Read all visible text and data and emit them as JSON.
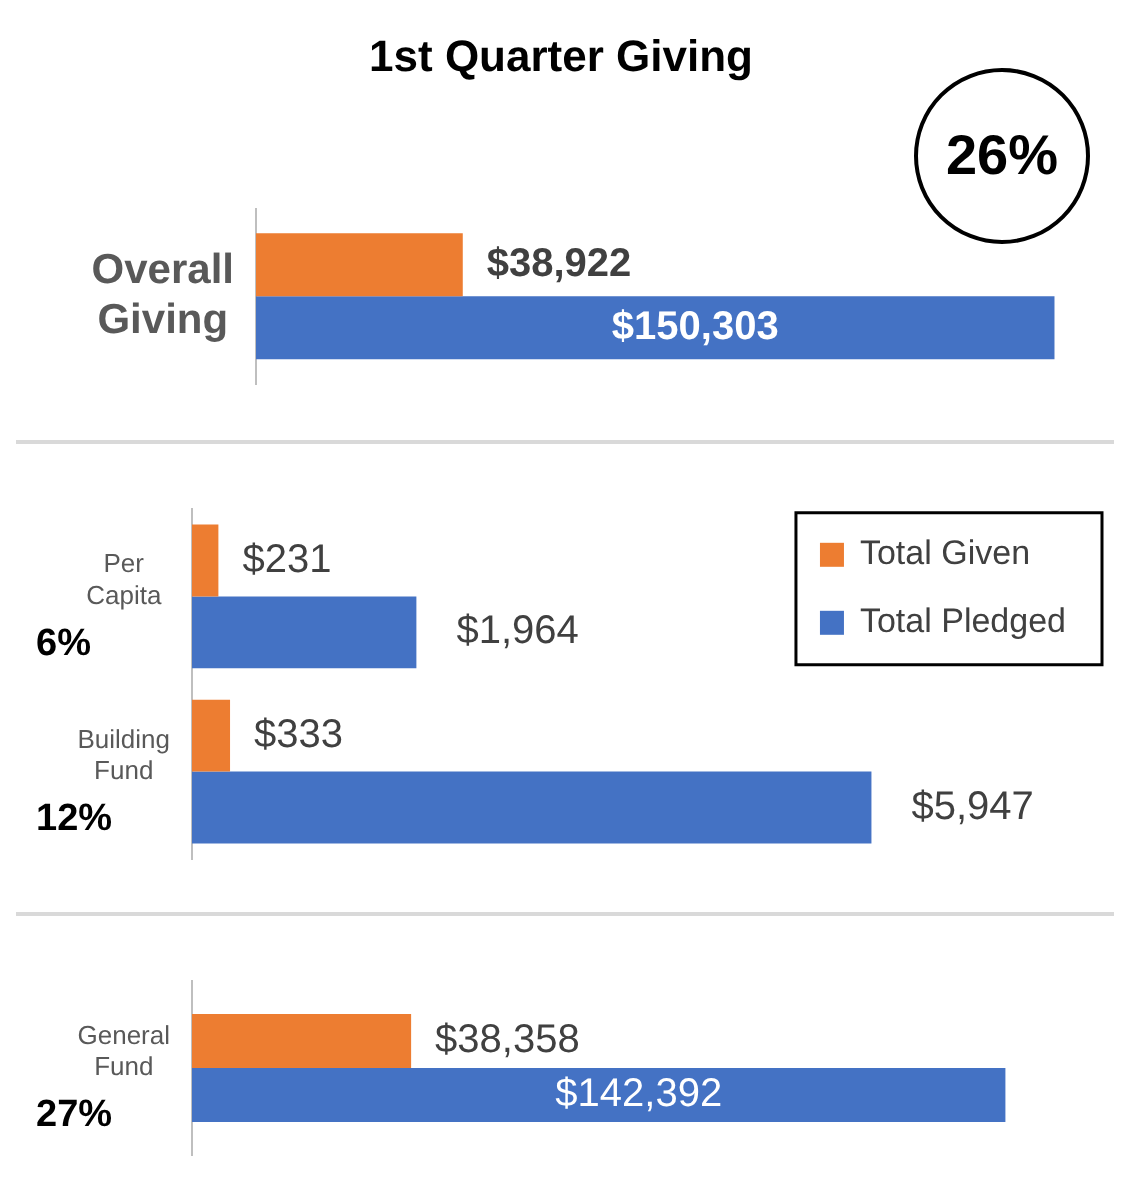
{
  "chart_data": [
    {
      "type": "bar",
      "orientation": "horizontal",
      "title": "1st Quarter Giving",
      "categories": [
        "Overall Giving"
      ],
      "annotations": [
        "26%"
      ],
      "series": [
        {
          "color": "#ed7d31",
          "values": [
            38922
          ],
          "value_labels": [
            "$38,922"
          ]
        },
        {
          "color": "#4472c4",
          "values": [
            150303
          ],
          "value_labels": [
            "$150,303"
          ]
        }
      ]
    },
    {
      "type": "bar",
      "orientation": "horizontal",
      "categories": [
        "Per Capita",
        "Building Fund"
      ],
      "annotations": [
        "6%",
        "12%"
      ],
      "legend": "top right",
      "series": [
        {
          "name": "Total Given",
          "color": "#ed7d31",
          "values": [
            231,
            333
          ],
          "value_labels": [
            "$231",
            "$333"
          ]
        },
        {
          "name": "Total Pledged",
          "color": "#4472c4",
          "values": [
            1964,
            5947
          ],
          "value_labels": [
            "$1,964",
            "$5,947"
          ]
        }
      ]
    },
    {
      "type": "bar",
      "orientation": "horizontal",
      "categories": [
        "General Fund"
      ],
      "annotations": [
        "27%"
      ],
      "series": [
        {
          "color": "#ed7d31",
          "values": [
            38358
          ],
          "value_labels": [
            "$38,358"
          ]
        },
        {
          "color": "#4472c4",
          "values": [
            142392
          ],
          "value_labels": [
            "$142,392"
          ]
        }
      ]
    }
  ]
}
